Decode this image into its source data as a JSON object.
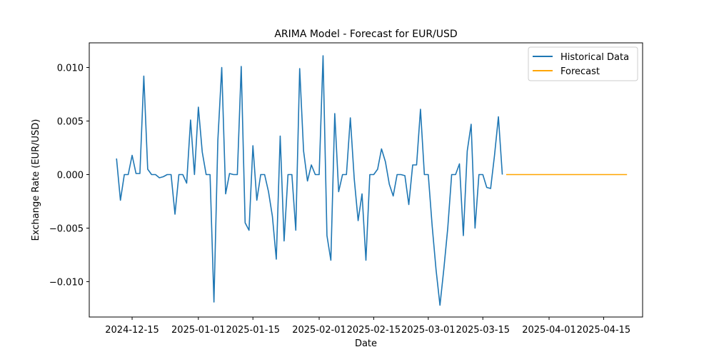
{
  "chart_data": {
    "type": "line",
    "title": "ARIMA Model - Forecast for EUR/USD",
    "xlabel": "Date",
    "ylabel": "Exchange Rate (EUR/USD)",
    "x_is_date": true,
    "xlim": [
      "2024-12-04",
      "2025-04-25"
    ],
    "ylim": [
      -0.0133,
      0.0123
    ],
    "x_ticks": [
      "2024-12-15",
      "2025-01-01",
      "2025-01-15",
      "2025-02-01",
      "2025-02-15",
      "2025-03-01",
      "2025-03-15",
      "2025-04-01",
      "2025-04-15"
    ],
    "y_ticks": [
      -0.01,
      -0.005,
      0.0,
      0.005,
      0.01
    ],
    "y_tick_labels": [
      "−0.010",
      "−0.005",
      "0.000",
      "0.005",
      "0.010"
    ],
    "legend_position": "top-right",
    "grid": false,
    "series": [
      {
        "name": "Historical Data",
        "color": "#1f77b4",
        "x": [
          "2024-12-11",
          "2024-12-12",
          "2024-12-13",
          "2024-12-14",
          "2024-12-15",
          "2024-12-16",
          "2024-12-17",
          "2024-12-18",
          "2024-12-19",
          "2024-12-20",
          "2024-12-21",
          "2024-12-22",
          "2024-12-23",
          "2024-12-24",
          "2024-12-25",
          "2024-12-26",
          "2024-12-27",
          "2024-12-28",
          "2024-12-29",
          "2024-12-30",
          "2024-12-31",
          "2025-01-01",
          "2025-01-02",
          "2025-01-03",
          "2025-01-04",
          "2025-01-05",
          "2025-01-06",
          "2025-01-07",
          "2025-01-08",
          "2025-01-09",
          "2025-01-10",
          "2025-01-11",
          "2025-01-12",
          "2025-01-13",
          "2025-01-14",
          "2025-01-15",
          "2025-01-16",
          "2025-01-17",
          "2025-01-18",
          "2025-01-19",
          "2025-01-20",
          "2025-01-21",
          "2025-01-22",
          "2025-01-23",
          "2025-01-24",
          "2025-01-25",
          "2025-01-26",
          "2025-01-27",
          "2025-01-28",
          "2025-01-29",
          "2025-01-30",
          "2025-01-31",
          "2025-02-01",
          "2025-02-02",
          "2025-02-03",
          "2025-02-04",
          "2025-02-05",
          "2025-02-06",
          "2025-02-07",
          "2025-02-08",
          "2025-02-09",
          "2025-02-10",
          "2025-02-11",
          "2025-02-12",
          "2025-02-13",
          "2025-02-14",
          "2025-02-15",
          "2025-02-16",
          "2025-02-17",
          "2025-02-18",
          "2025-02-19",
          "2025-02-20",
          "2025-02-21",
          "2025-02-22",
          "2025-02-23",
          "2025-02-24",
          "2025-02-25",
          "2025-02-26",
          "2025-02-27",
          "2025-02-28",
          "2025-03-01",
          "2025-03-02",
          "2025-03-03",
          "2025-03-04",
          "2025-03-05",
          "2025-03-06",
          "2025-03-07",
          "2025-03-08",
          "2025-03-09",
          "2025-03-10",
          "2025-03-11",
          "2025-03-12",
          "2025-03-13",
          "2025-03-14",
          "2025-03-15",
          "2025-03-16",
          "2025-03-17",
          "2025-03-18",
          "2025-03-19",
          "2025-03-20"
        ],
        "y": [
          0.0015,
          -0.0024,
          0.0,
          0.0,
          0.0018,
          0.0001,
          0.0001,
          0.0092,
          0.0005,
          0.0,
          0.0,
          -0.0003,
          -0.0002,
          0.0,
          0.0,
          -0.0037,
          0.0,
          0.0,
          -0.0008,
          0.0051,
          0.0,
          0.0063,
          0.0021,
          0.0,
          0.0,
          -0.0119,
          0.0032,
          0.01,
          -0.0018,
          0.0001,
          0.0,
          0.0,
          0.0101,
          -0.0045,
          -0.0052,
          0.0027,
          -0.0024,
          0.0,
          0.0,
          -0.0016,
          -0.0039,
          -0.0079,
          0.0036,
          -0.0062,
          0.0,
          0.0,
          -0.0052,
          0.0099,
          0.0022,
          -0.0006,
          0.0009,
          0.0,
          0.0,
          0.0111,
          -0.0057,
          -0.008,
          0.0057,
          -0.0016,
          0.0,
          0.0,
          0.0053,
          -0.0004,
          -0.0043,
          -0.0018,
          -0.008,
          0.0,
          0.0,
          0.0005,
          0.0024,
          0.0012,
          -0.0009,
          -0.002,
          0.0,
          0.0,
          -0.0001,
          -0.0028,
          0.0009,
          0.0009,
          0.0061,
          0.0,
          0.0,
          -0.0048,
          -0.0089,
          -0.0122,
          -0.0088,
          -0.005,
          0.0,
          0.0,
          0.001,
          -0.0057,
          0.0022,
          0.0047,
          -0.005,
          0.0,
          0.0,
          -0.0012,
          -0.0013,
          0.0018,
          0.0054,
          0.0
        ]
      },
      {
        "name": "Forecast",
        "color": "#ffa500",
        "x": [
          "2025-03-21",
          "2025-03-28",
          "2025-04-04",
          "2025-04-11",
          "2025-04-18",
          "2025-04-21"
        ],
        "y": [
          0.0,
          0.0,
          0.0,
          0.0,
          0.0,
          0.0
        ]
      }
    ]
  }
}
